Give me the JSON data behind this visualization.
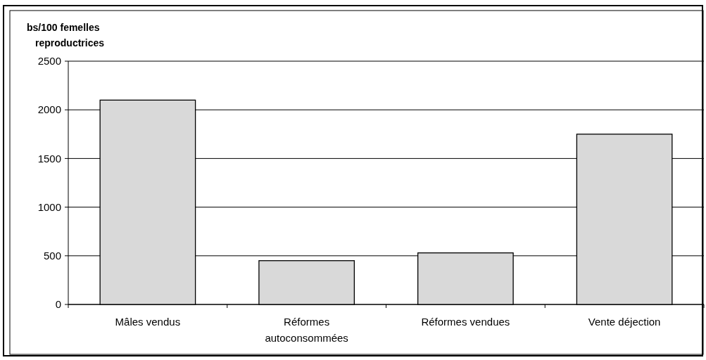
{
  "chart_data": {
    "type": "bar",
    "ylabel": "bs/100 femelles reproductrices",
    "categories": [
      "Mâles vendus",
      "Réformes autoconsommées",
      "Réformes vendues",
      "Vente déjection"
    ],
    "values": [
      2100,
      450,
      530,
      1750
    ],
    "color": "#d9d9d9",
    "ylim": [
      0,
      2500
    ],
    "yticks": [
      0,
      500,
      1000,
      1500,
      2000,
      2500
    ],
    "grid": "y"
  }
}
